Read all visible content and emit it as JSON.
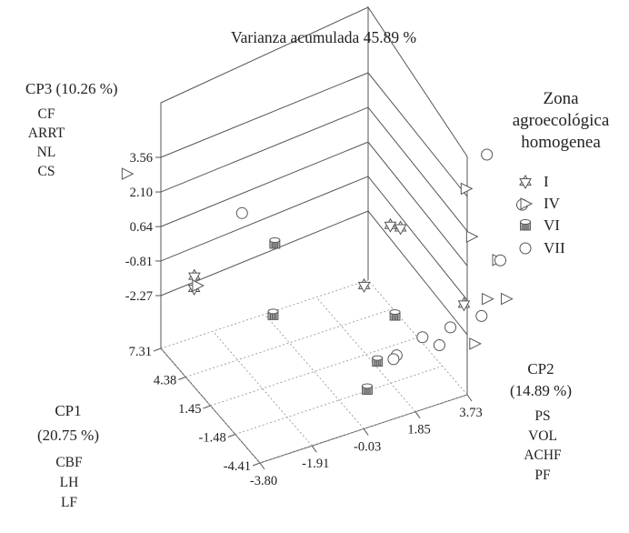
{
  "chart_data": {
    "type": "scatter",
    "projection": "3d",
    "title": "Varianza acumulada 45.89 %",
    "axes": {
      "cp1": {
        "label_line1": "CP1",
        "label_line2": "(20.75 %)",
        "variables": [
          "CBF",
          "LH",
          "LF"
        ],
        "ticks": [
          7.31,
          4.38,
          1.45,
          -1.48,
          -4.41
        ],
        "tick_labels": [
          "7.31",
          "4.38",
          "1.45",
          "-1.48",
          "-4.41"
        ],
        "range": [
          -4.41,
          7.31
        ]
      },
      "cp2": {
        "label_line1": "CP2",
        "label_line2": "(14.89 %)",
        "variables": [
          "PS",
          "VOL",
          "ACHF",
          "PF"
        ],
        "ticks": [
          -3.8,
          -1.91,
          -0.03,
          1.85,
          3.73
        ],
        "tick_labels": [
          "-3.80",
          "-1.91",
          "-0.03",
          "1.85",
          "3.73"
        ],
        "range": [
          -3.8,
          3.73
        ]
      },
      "cp3": {
        "label": "CP3 (10.26 %)",
        "variables": [
          "CF",
          "ARRT",
          "NL",
          "CS"
        ],
        "ticks": [
          3.56,
          2.1,
          0.64,
          -0.81,
          -2.27
        ],
        "tick_labels": [
          "3.56",
          "2.10",
          "0.64",
          "-0.81",
          "-2.27"
        ],
        "range": [
          -2.27,
          3.56
        ]
      }
    },
    "legend": {
      "title_lines": [
        "Zona",
        "agroecológica",
        "homogenea"
      ],
      "position": "right",
      "entries": [
        {
          "label": "I",
          "marker": "star-of-david-icon"
        },
        {
          "label": "IV",
          "marker": "triangle-right-icon"
        },
        {
          "label": "VI",
          "marker": "cylinder-icon"
        },
        {
          "label": "VII",
          "marker": "circle-icon"
        }
      ]
    },
    "series": [
      {
        "name": "I",
        "marker": "star-of-david-icon",
        "points": [
          {
            "cp1": 1.0,
            "cp2": 2.6,
            "cp3": 0.85
          },
          {
            "cp1": 1.1,
            "cp2": 3.0,
            "cp3": 0.55
          },
          {
            "cp1": 0.2,
            "cp2": 1.4,
            "cp3": -0.9
          },
          {
            "cp1": -3.8,
            "cp2": 3.8,
            "cp3": -0.95
          },
          {
            "cp1": 5.3,
            "cp2": -3.2,
            "cp3": -0.85
          },
          {
            "cp1": 5.0,
            "cp2": -3.3,
            "cp3": -1.2
          }
        ]
      },
      {
        "name": "IV",
        "marker": "triangle-right-icon",
        "points": [
          {
            "cp1": 5.5,
            "cp2": -5.6,
            "cp3": 4.3
          },
          {
            "cp1": -4.0,
            "cp2": 3.8,
            "cp3": 4.0
          },
          {
            "cp1": -4.0,
            "cp2": 4.0,
            "cp3": 1.9
          },
          {
            "cp1": -2.2,
            "cp2": 5.5,
            "cp3": -0.4
          },
          {
            "cp1": 4.0,
            "cp2": -3.5,
            "cp3": -0.6
          },
          {
            "cp1": -3.9,
            "cp2": 4.6,
            "cp3": -1.0
          },
          {
            "cp1": -4.2,
            "cp2": 5.2,
            "cp3": -1.1
          },
          {
            "cp1": -6.0,
            "cp2": 3.5,
            "cp3": -1.6
          }
        ]
      },
      {
        "name": "VI",
        "marker": "cylinder-icon",
        "points": [
          {
            "cp1": 3.6,
            "cp2": -0.8,
            "cp3": 0.3
          },
          {
            "cp1": -1.5,
            "cp2": 2.0,
            "cp3": -1.7
          },
          {
            "cp1": 2.5,
            "cp2": -1.2,
            "cp3": -2.1
          },
          {
            "cp1": -3.0,
            "cp2": 0.9,
            "cp3": -2.6
          },
          {
            "cp1": -4.4,
            "cp2": 0.1,
            "cp3": -2.9
          }
        ]
      },
      {
        "name": "VII",
        "marker": "circle-icon",
        "points": [
          {
            "cp1": 5.2,
            "cp2": -1.5,
            "cp3": 1.2
          },
          {
            "cp1": -2.6,
            "cp2": 5.0,
            "cp3": 4.4
          },
          {
            "cp1": -4.5,
            "cp2": 5.7,
            "cp3": 2.8
          },
          {
            "cp1": -4.2,
            "cp2": 5.0,
            "cp3": 0.6
          },
          {
            "cp1": -3.6,
            "cp2": 4.5,
            "cp3": -1.8
          },
          {
            "cp1": -3.5,
            "cp2": 3.4,
            "cp3": -1.9
          },
          {
            "cp1": -2.8,
            "cp2": 2.6,
            "cp3": -2.3
          },
          {
            "cp1": -3.5,
            "cp2": 3.0,
            "cp3": -2.5
          },
          {
            "cp1": -3.0,
            "cp2": 1.6,
            "cp3": -2.6
          },
          {
            "cp1": -3.6,
            "cp2": 1.3,
            "cp3": -2.4
          }
        ]
      }
    ]
  }
}
